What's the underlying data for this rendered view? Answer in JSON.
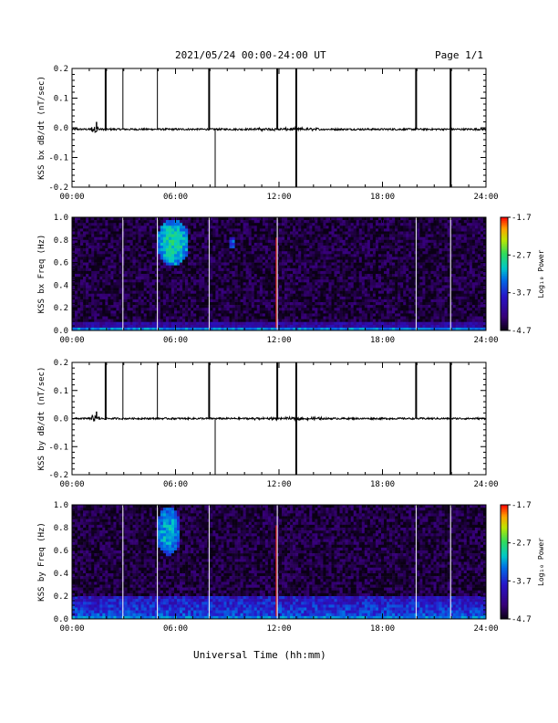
{
  "header": {
    "title": "2021/05/24  00:00-24:00 UT",
    "page": "Page 1/1"
  },
  "xlabel": "Universal Time (hh:mm)",
  "colorbar": {
    "label": "Log₁₀ Power",
    "ticks": [
      "-1.7",
      "-2.7",
      "-3.7",
      "-4.7"
    ],
    "range": [
      -4.7,
      -1.7
    ]
  },
  "chart_data": [
    {
      "type": "line",
      "ylabel": "KSS bx dB/dt (nT/sec)",
      "xlim": [
        0,
        24
      ],
      "ylim": [
        -0.2,
        0.2
      ],
      "xticks": [
        "00:00",
        "06:00",
        "12:00",
        "18:00",
        "24:00"
      ],
      "yticks": [
        "0.2",
        "0.1",
        "0.0",
        "-0.1",
        "-0.2"
      ],
      "baseline": -0.005,
      "spikes": [
        {
          "t": 1.95,
          "y0": -0.01,
          "y1": 0.2,
          "bold": true
        },
        {
          "t": 2.95,
          "y0": -0.005,
          "y1": 0.2,
          "bold": false
        },
        {
          "t": 4.95,
          "y0": -0.005,
          "y1": 0.2,
          "bold": false
        },
        {
          "t": 7.95,
          "y0": -0.005,
          "y1": 0.2,
          "bold": true
        },
        {
          "t": 8.3,
          "y0": -0.2,
          "y1": -0.005,
          "bold": false
        },
        {
          "t": 11.9,
          "y0": -0.005,
          "y1": 0.2,
          "bold": true
        },
        {
          "t": 13.0,
          "y0": -0.2,
          "y1": 0.2,
          "bold": true
        },
        {
          "t": 19.95,
          "y0": -0.005,
          "y1": 0.2,
          "bold": true
        },
        {
          "t": 21.95,
          "y0": -0.2,
          "y1": 0.2,
          "bold": true
        }
      ]
    },
    {
      "type": "heatmap",
      "ylabel": "KSS bx Freq (Hz)",
      "xlim": [
        0,
        24
      ],
      "ylim": [
        0,
        1
      ],
      "xticks": [
        "00:00",
        "06:00",
        "12:00",
        "18:00",
        "24:00"
      ],
      "yticks": [
        "1.0",
        "0.8",
        "0.6",
        "0.4",
        "0.2",
        "0.0"
      ],
      "gaps": [
        2.95,
        4.95,
        7.95,
        11.9,
        19.95,
        21.95
      ],
      "red_line": 11.9,
      "events": [
        {
          "t0": 4.9,
          "t1": 6.8,
          "f0": 0.57,
          "f1": 0.98,
          "level": -2.9
        },
        {
          "t0": 9.1,
          "t1": 9.5,
          "f0": 0.72,
          "f1": 0.82,
          "level": -3.4
        }
      ]
    },
    {
      "type": "line",
      "ylabel": "KSS by dB/dt (nT/sec)",
      "xlim": [
        0,
        24
      ],
      "ylim": [
        -0.2,
        0.2
      ],
      "xticks": [
        "00:00",
        "06:00",
        "12:00",
        "18:00",
        "24:00"
      ],
      "yticks": [
        "0.2",
        "0.1",
        "0.0",
        "-0.1",
        "-0.2"
      ],
      "baseline": 0.0,
      "spikes": [
        {
          "t": 1.95,
          "y0": -0.005,
          "y1": 0.2,
          "bold": true
        },
        {
          "t": 2.95,
          "y0": 0.0,
          "y1": 0.2,
          "bold": false
        },
        {
          "t": 4.95,
          "y0": 0.0,
          "y1": 0.2,
          "bold": false
        },
        {
          "t": 7.95,
          "y0": 0.0,
          "y1": 0.2,
          "bold": true
        },
        {
          "t": 8.3,
          "y0": -0.2,
          "y1": 0.0,
          "bold": false
        },
        {
          "t": 11.9,
          "y0": 0.0,
          "y1": 0.2,
          "bold": true
        },
        {
          "t": 13.0,
          "y0": -0.2,
          "y1": 0.2,
          "bold": true
        },
        {
          "t": 19.95,
          "y0": 0.0,
          "y1": 0.2,
          "bold": true
        },
        {
          "t": 21.95,
          "y0": -0.2,
          "y1": 0.2,
          "bold": true
        }
      ]
    },
    {
      "type": "heatmap",
      "ylabel": "KSS by Freq (Hz)",
      "xlim": [
        0,
        24
      ],
      "ylim": [
        0,
        1
      ],
      "xticks": [
        "00:00",
        "06:00",
        "12:00",
        "18:00",
        "24:00"
      ],
      "yticks": [
        "1.0",
        "0.8",
        "0.6",
        "0.4",
        "0.2",
        "0.0"
      ],
      "gaps": [
        2.95,
        4.95,
        7.95,
        11.9,
        19.95,
        21.95
      ],
      "red_line": 11.9,
      "events": [
        {
          "t0": 4.9,
          "t1": 6.3,
          "f0": 0.55,
          "f1": 0.98,
          "level": -3.1
        }
      ]
    }
  ]
}
